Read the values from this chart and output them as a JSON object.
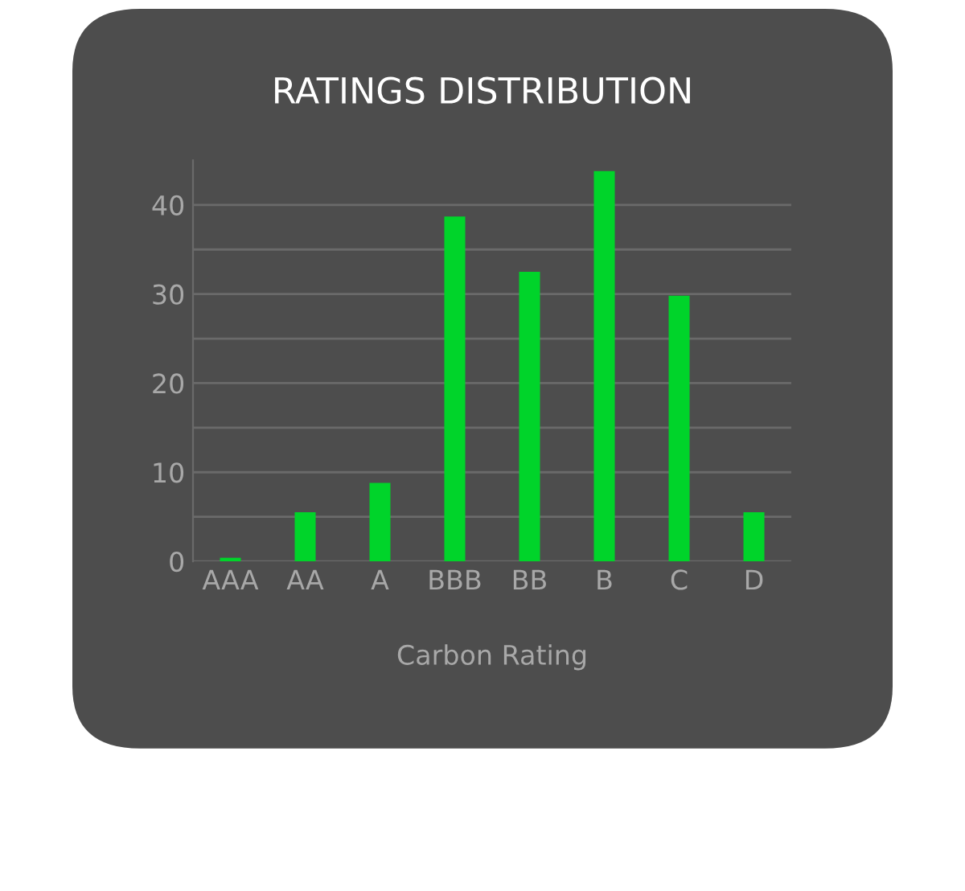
{
  "chart_data": {
    "type": "bar",
    "title": "RATINGS DISTRIBUTION",
    "xlabel": "Carbon Rating",
    "categories": [
      "AAA",
      "AA",
      "A",
      "BBB",
      "BB",
      "B",
      "C",
      "D"
    ],
    "values": [
      0.4,
      5.5,
      8.8,
      38.7,
      32.5,
      43.8,
      29.8,
      5.5
    ],
    "color": "#00d42a",
    "ylim": [
      0,
      45
    ],
    "yticks": [
      0,
      {
        "value": 5,
        "label": null
      },
      10,
      {
        "value": 15,
        "label": null
      },
      20,
      {
        "value": 25,
        "label": null
      },
      30,
      {
        "value": 35,
        "label": null
      },
      40
    ],
    "grid": "y"
  }
}
